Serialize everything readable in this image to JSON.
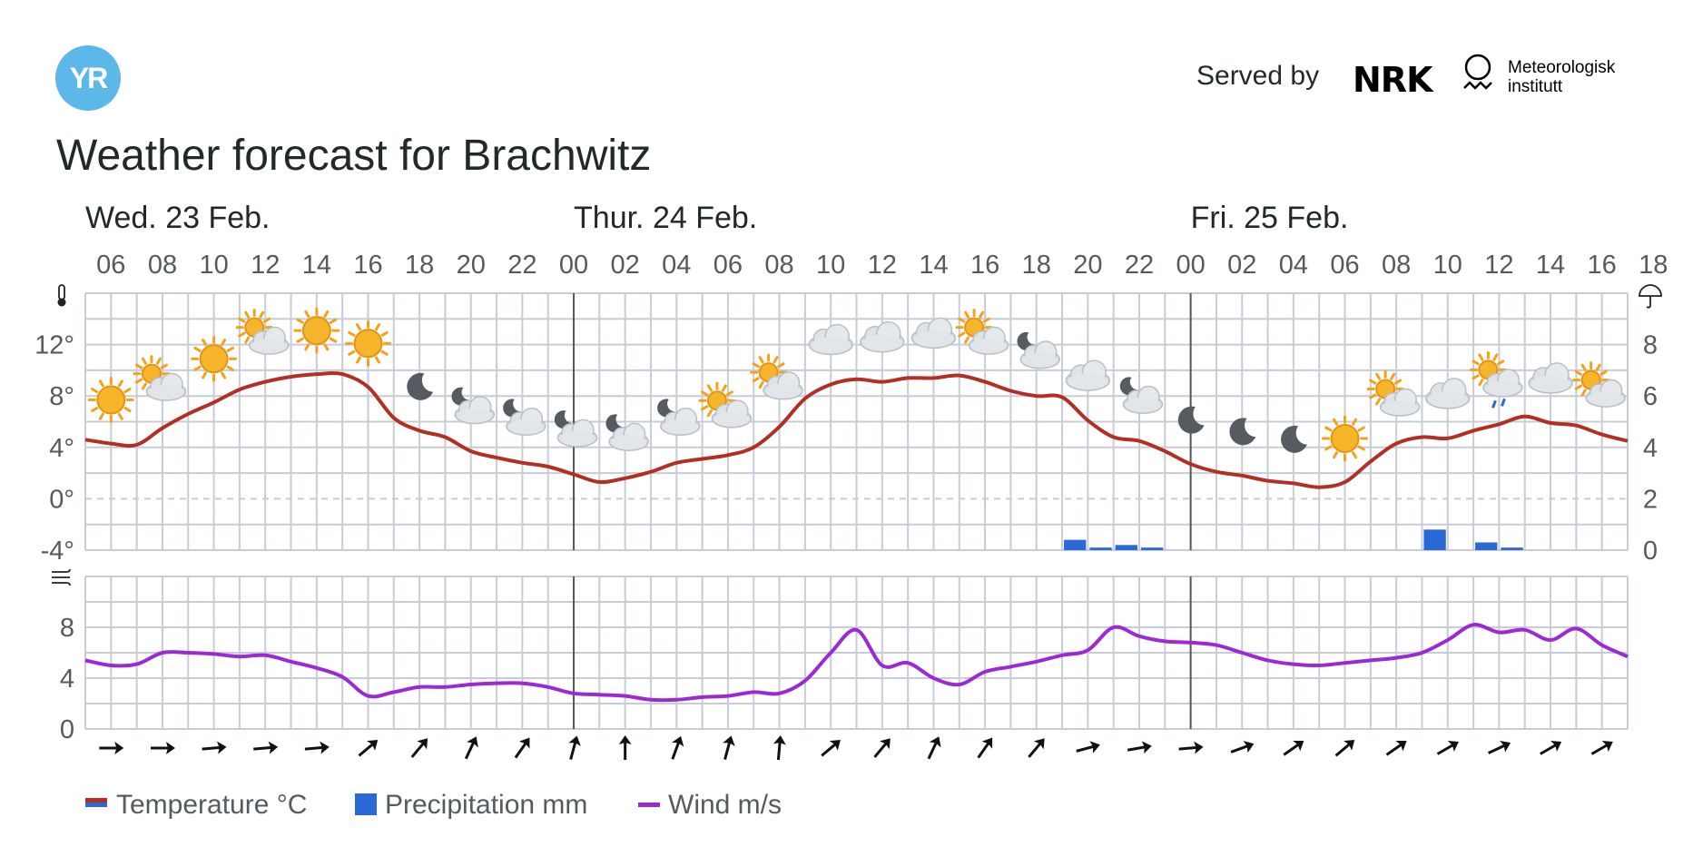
{
  "header": {
    "logo_text": "YR",
    "served_by": "Served by",
    "nrk_logo": "NRK",
    "met_line1": "Meteorologisk",
    "met_line2": "institutt"
  },
  "title": "Weather forecast for Brachwitz",
  "colors": {
    "temperature": "#b22f23",
    "precipitation": "#2b69d6",
    "wind": "#9b2ad6",
    "grid": "#c7ccd6",
    "day_separator": "#585858",
    "text": "#21292b",
    "axis_text": "#545b5f"
  },
  "legend": [
    {
      "label": "Temperature °C",
      "icon": "temperature-legend-icon"
    },
    {
      "label": "Precipitation mm",
      "icon": "precipitation-legend-icon"
    },
    {
      "label": "Wind m/s",
      "icon": "wind-legend-icon"
    }
  ],
  "chart_data": {
    "type": "line",
    "days": [
      {
        "label": "Wed. 23 Feb.",
        "start_hour": 5
      },
      {
        "label": "Thur. 24 Feb.",
        "start_hour": 24
      },
      {
        "label": "Fri. 25 Feb.",
        "start_hour": 48
      }
    ],
    "x_hours_start": 5,
    "x_hours_end": 65,
    "x_tick_labels": [
      "06",
      "08",
      "10",
      "12",
      "14",
      "16",
      "18",
      "20",
      "22",
      "00",
      "02",
      "04",
      "06",
      "08",
      "10",
      "12",
      "14",
      "16",
      "18",
      "20",
      "22",
      "00",
      "02",
      "04",
      "06",
      "08",
      "10",
      "12",
      "14",
      "16",
      "18"
    ],
    "temperature_axis": {
      "ylim": [
        -4,
        16
      ],
      "ticks": [
        "-4°",
        "0°",
        "4°",
        "8°",
        "12°"
      ],
      "icon": "thermometer-icon"
    },
    "precipitation_axis": {
      "ylim": [
        0,
        10
      ],
      "ticks": [
        "0",
        "2",
        "4",
        "6",
        "8"
      ],
      "icon": "umbrella-icon"
    },
    "wind_axis": {
      "ylim": [
        0,
        12
      ],
      "ticks": [
        "0",
        "4",
        "8"
      ],
      "icon": "wind-icon"
    },
    "series": [
      {
        "name": "Temperature °C",
        "axis": "temperature",
        "hours": [
          5,
          6,
          7,
          8,
          9,
          10,
          11,
          12,
          13,
          14,
          15,
          16,
          17,
          18,
          19,
          20,
          21,
          22,
          23,
          24,
          25,
          26,
          27,
          28,
          29,
          30,
          31,
          32,
          33,
          34,
          35,
          36,
          37,
          38,
          39,
          40,
          41,
          42,
          43,
          44,
          45,
          46,
          47,
          48,
          49,
          50,
          51,
          52,
          53,
          54,
          55,
          56,
          57,
          58,
          59,
          60,
          61,
          62,
          63,
          64,
          65
        ],
        "values": [
          4.6,
          4.3,
          4.2,
          5.5,
          6.6,
          7.5,
          8.5,
          9.1,
          9.5,
          9.7,
          9.7,
          8.7,
          6.3,
          5.3,
          4.8,
          3.7,
          3.2,
          2.8,
          2.5,
          1.9,
          1.3,
          1.6,
          2.1,
          2.8,
          3.1,
          3.4,
          4.0,
          5.6,
          7.8,
          8.9,
          9.3,
          9.1,
          9.4,
          9.4,
          9.6,
          9.1,
          8.4,
          8.0,
          7.9,
          6.1,
          4.8,
          4.5,
          3.7,
          2.7,
          2.1,
          1.8,
          1.4,
          1.2,
          0.9,
          1.3,
          2.9,
          4.3,
          4.8,
          4.7,
          5.3,
          5.8,
          6.4,
          5.9,
          5.7,
          5.0,
          4.5
        ]
      },
      {
        "name": "Wind m/s",
        "axis": "wind",
        "hours": [
          5,
          6,
          7,
          8,
          9,
          10,
          11,
          12,
          13,
          14,
          15,
          16,
          17,
          18,
          19,
          20,
          21,
          22,
          23,
          24,
          25,
          26,
          27,
          28,
          29,
          30,
          31,
          32,
          33,
          34,
          35,
          36,
          37,
          38,
          39,
          40,
          41,
          42,
          43,
          44,
          45,
          46,
          47,
          48,
          49,
          50,
          51,
          52,
          53,
          54,
          55,
          56,
          57,
          58,
          59,
          60,
          61,
          62,
          63,
          64,
          65
        ],
        "values": [
          5.4,
          5.0,
          5.1,
          6.0,
          6.0,
          5.9,
          5.7,
          5.8,
          5.3,
          4.8,
          4.1,
          2.6,
          2.9,
          3.3,
          3.3,
          3.5,
          3.6,
          3.6,
          3.3,
          2.8,
          2.7,
          2.6,
          2.3,
          2.3,
          2.5,
          2.6,
          2.9,
          2.8,
          3.8,
          6.0,
          7.8,
          5.0,
          5.2,
          4.0,
          3.5,
          4.5,
          4.9,
          5.3,
          5.8,
          6.2,
          8.0,
          7.3,
          6.9,
          6.8,
          6.6,
          6.0,
          5.4,
          5.1,
          5.0,
          5.2,
          5.4,
          5.6,
          6.0,
          7.0,
          8.2,
          7.6,
          7.8,
          7.0,
          7.9,
          6.6,
          5.7
        ]
      },
      {
        "name": "Precipitation mm",
        "axis": "precipitation",
        "type": "bar",
        "bars": [
          {
            "hour": 43,
            "value": 0.4
          },
          {
            "hour": 44,
            "value": 0.1
          },
          {
            "hour": 45,
            "value": 0.2
          },
          {
            "hour": 46,
            "value": 0.1
          },
          {
            "hour": 57,
            "value": 0.8
          },
          {
            "hour": 59,
            "value": 0.3
          },
          {
            "hour": 60,
            "value": 0.1
          }
        ]
      }
    ],
    "weather_symbols": [
      {
        "hour": 6,
        "icon": "sun-icon"
      },
      {
        "hour": 8,
        "icon": "sun-cloud-icon"
      },
      {
        "hour": 10,
        "icon": "sun-icon"
      },
      {
        "hour": 12,
        "icon": "sun-cloud-icon"
      },
      {
        "hour": 14,
        "icon": "sun-icon"
      },
      {
        "hour": 16,
        "icon": "sun-icon"
      },
      {
        "hour": 18,
        "icon": "moon-icon"
      },
      {
        "hour": 20,
        "icon": "moon-cloud-icon"
      },
      {
        "hour": 22,
        "icon": "moon-cloud-icon"
      },
      {
        "hour": 24,
        "icon": "moon-cloud-icon"
      },
      {
        "hour": 26,
        "icon": "moon-cloud-icon"
      },
      {
        "hour": 28,
        "icon": "moon-cloud-icon"
      },
      {
        "hour": 30,
        "icon": "sun-cloud-icon"
      },
      {
        "hour": 32,
        "icon": "sun-cloud-icon"
      },
      {
        "hour": 34,
        "icon": "cloud-icon"
      },
      {
        "hour": 36,
        "icon": "cloud-icon"
      },
      {
        "hour": 38,
        "icon": "cloud-icon"
      },
      {
        "hour": 40,
        "icon": "sun-cloud-icon"
      },
      {
        "hour": 42,
        "icon": "moon-cloud-icon"
      },
      {
        "hour": 44,
        "icon": "cloud-icon"
      },
      {
        "hour": 46,
        "icon": "moon-cloud-icon"
      },
      {
        "hour": 48,
        "icon": "moon-icon"
      },
      {
        "hour": 50,
        "icon": "moon-icon"
      },
      {
        "hour": 52,
        "icon": "moon-icon"
      },
      {
        "hour": 54,
        "icon": "sun-icon"
      },
      {
        "hour": 56,
        "icon": "sun-cloud-icon"
      },
      {
        "hour": 58,
        "icon": "cloud-icon"
      },
      {
        "hour": 60,
        "icon": "sun-cloud-rain-icon"
      },
      {
        "hour": 62,
        "icon": "cloud-icon"
      },
      {
        "hour": 64,
        "icon": "sun-cloud-icon"
      }
    ],
    "wind_directions": [
      {
        "hour": 6,
        "to_deg": 90
      },
      {
        "hour": 8,
        "to_deg": 90
      },
      {
        "hour": 10,
        "to_deg": 85
      },
      {
        "hour": 12,
        "to_deg": 85
      },
      {
        "hour": 14,
        "to_deg": 85
      },
      {
        "hour": 16,
        "to_deg": 50
      },
      {
        "hour": 18,
        "to_deg": 40
      },
      {
        "hour": 20,
        "to_deg": 25
      },
      {
        "hour": 22,
        "to_deg": 35
      },
      {
        "hour": 24,
        "to_deg": 15
      },
      {
        "hour": 26,
        "to_deg": 0
      },
      {
        "hour": 28,
        "to_deg": 20
      },
      {
        "hour": 30,
        "to_deg": 15
      },
      {
        "hour": 32,
        "to_deg": 5
      },
      {
        "hour": 34,
        "to_deg": 50
      },
      {
        "hour": 36,
        "to_deg": 40
      },
      {
        "hour": 38,
        "to_deg": 25
      },
      {
        "hour": 40,
        "to_deg": 35
      },
      {
        "hour": 42,
        "to_deg": 40
      },
      {
        "hour": 44,
        "to_deg": 75
      },
      {
        "hour": 46,
        "to_deg": 80
      },
      {
        "hour": 48,
        "to_deg": 85
      },
      {
        "hour": 50,
        "to_deg": 70
      },
      {
        "hour": 52,
        "to_deg": 55
      },
      {
        "hour": 54,
        "to_deg": 50
      },
      {
        "hour": 56,
        "to_deg": 55
      },
      {
        "hour": 58,
        "to_deg": 60
      },
      {
        "hour": 60,
        "to_deg": 65
      },
      {
        "hour": 62,
        "to_deg": 60
      },
      {
        "hour": 64,
        "to_deg": 60
      }
    ]
  }
}
